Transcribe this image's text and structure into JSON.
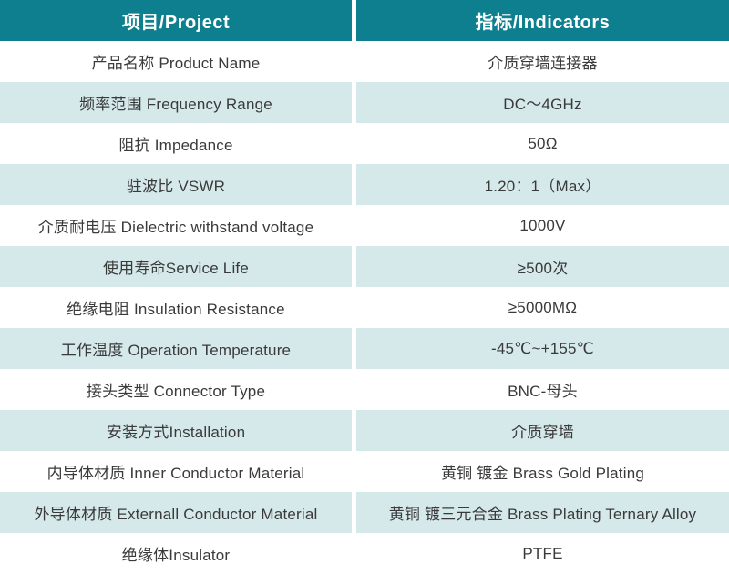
{
  "table": {
    "headers": {
      "project": "项目/Project",
      "indicator": "指标/Indicators"
    },
    "rows": [
      {
        "project": "产品名称 Product Name",
        "indicator": "介质穿墙连接器"
      },
      {
        "project": "频率范围 Frequency Range",
        "indicator": "DC～4GHz"
      },
      {
        "project": "阻抗 Impedance",
        "indicator": "50Ω"
      },
      {
        "project": "驻波比 VSWR",
        "indicator": "1.20：1（Max）"
      },
      {
        "project": "介质耐电压 Dielectric withstand voltage",
        "indicator": "1000V"
      },
      {
        "project": "使用寿命Service Life",
        "indicator": "≥500次"
      },
      {
        "project": "绝缘电阻 Insulation Resistance",
        "indicator": "≥5000MΩ"
      },
      {
        "project": "工作温度 Operation Temperature",
        "indicator": "-45℃~+155℃"
      },
      {
        "project": "接头类型  Connector Type",
        "indicator": "BNC-母头"
      },
      {
        "project": "安装方式Installation",
        "indicator": "介质穿墙"
      },
      {
        "project": "内导体材质 Inner Conductor Material",
        "indicator": "黄铜 镀金 Brass Gold Plating"
      },
      {
        "project": "外导体材质 Externall Conductor Material",
        "indicator": "黄铜 镀三元合金 Brass Plating Ternary Alloy"
      },
      {
        "project": "绝缘体Insulator",
        "indicator": "PTFE"
      }
    ],
    "colors": {
      "header_bg": "#0d7f8e",
      "header_text": "#ffffff",
      "row_bg": "#ffffff",
      "row_alt_bg": "#d5e8ea",
      "body_text": "#3a3a3a",
      "divider": "#ffffff"
    }
  }
}
